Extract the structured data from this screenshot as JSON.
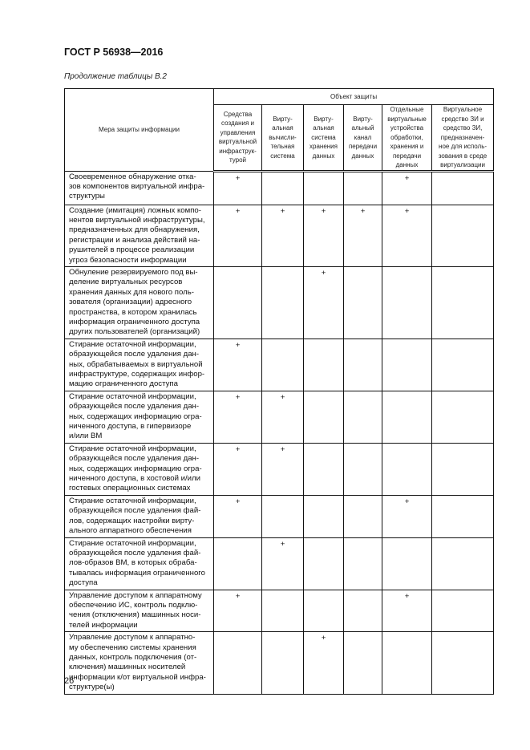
{
  "header": {
    "doc_code": "ГОСТ Р 56938—2016",
    "caption": "Продолжение таблицы В.2"
  },
  "table": {
    "measure_header": "Мера защиты информации",
    "object_header": "Объект защиты",
    "columns": [
      "Средства\nсоздания и\nуправления\nвиртуальной\nинфраструк-\nтурой",
      "Вирту-\nальная\nвычисли-\nтельная\nсистема",
      "Вирту-\nальная\nсистема\nхранения\nданных",
      "Вирту-\nальный\nканал\nпередачи\nданных",
      "Отдельные\nвиртуальные\nустройства\nобработки,\nхранения и\nпередачи\nданных",
      "Виртуальное\nсредство ЗИ и\nсредство ЗИ,\nпредназначен-\nное для исполь-\nзования в среде\nвиртуализации"
    ],
    "rows": [
      {
        "measure": "Своевременное обнаружение отка-\nзов компонентов виртуальной инфра-\nструктуры",
        "marks": [
          "+",
          "",
          "",
          "",
          "+",
          ""
        ]
      },
      {
        "measure": "Создание (имитация) ложных компо-\nнентов виртуальной инфраструктуры,\nпредназначенных для обнаружения,\nрегистрации и анализа действий на-\nрушителей в процессе реализации\nугроз безопасности информации",
        "marks": [
          "+",
          "+",
          "+",
          "+",
          "+",
          ""
        ]
      },
      {
        "measure": "Обнуление резервируемого под вы-\nделение виртуальных ресурсов\nхранения данных для нового поль-\nзователя (организации) адресного\nпространства, в котором хранилась\nинформация ограниченного доступа\nдругих пользователей (организаций)",
        "marks": [
          "",
          "",
          "+",
          "",
          "",
          ""
        ]
      },
      {
        "measure": "Стирание остаточной информации,\nобразующейся после удаления дан-\nных, обрабатываемых в виртуальной\nинфраструктуре, содержащих инфор-\nмацию ограниченного доступа",
        "marks": [
          "+",
          "",
          "",
          "",
          "",
          ""
        ]
      },
      {
        "measure": "Стирание остаточной информации,\nобразующейся после удаления дан-\nных, содержащих информацию огра-\nниченного доступа, в гипервизоре\nи/или ВМ",
        "marks": [
          "+",
          "+",
          "",
          "",
          "",
          ""
        ]
      },
      {
        "measure": "Стирание остаточной информации,\nобразующейся после удаления дан-\nных, содержащих информацию огра-\nниченного доступа, в хостовой и/или\nгостевых операционных системах",
        "marks": [
          "+",
          "+",
          "",
          "",
          "",
          ""
        ]
      },
      {
        "measure": "Стирание остаточной информации,\nобразующейся после удаления фай-\nлов, содержащих настройки вирту-\nального аппаратного обеспечения",
        "marks": [
          "+",
          "",
          "",
          "",
          "+",
          ""
        ]
      },
      {
        "measure": "Стирание остаточной информации,\nобразующейся после удаления фай-\nлов-образов ВМ, в которых обраба-\nтывалась информация ограниченного\nдоступа",
        "marks": [
          "",
          "+",
          "",
          "",
          "",
          ""
        ]
      },
      {
        "measure": "Управление доступом к аппаратному\nобеспечению ИС, контроль подклю-\nчения (отключения) машинных носи-\nтелей информации",
        "marks": [
          "+",
          "",
          "",
          "",
          "+",
          ""
        ]
      },
      {
        "measure": "Управление доступом к аппаратно-\nму обеспечению системы хранения\nданных, контроль подключения (от-\nключения) машинных носителей\nинформации к/от виртуальной инфра-\nструктуре(ы)",
        "marks": [
          "",
          "",
          "+",
          "",
          "",
          ""
        ]
      }
    ]
  },
  "footer": {
    "page_number": "26"
  }
}
